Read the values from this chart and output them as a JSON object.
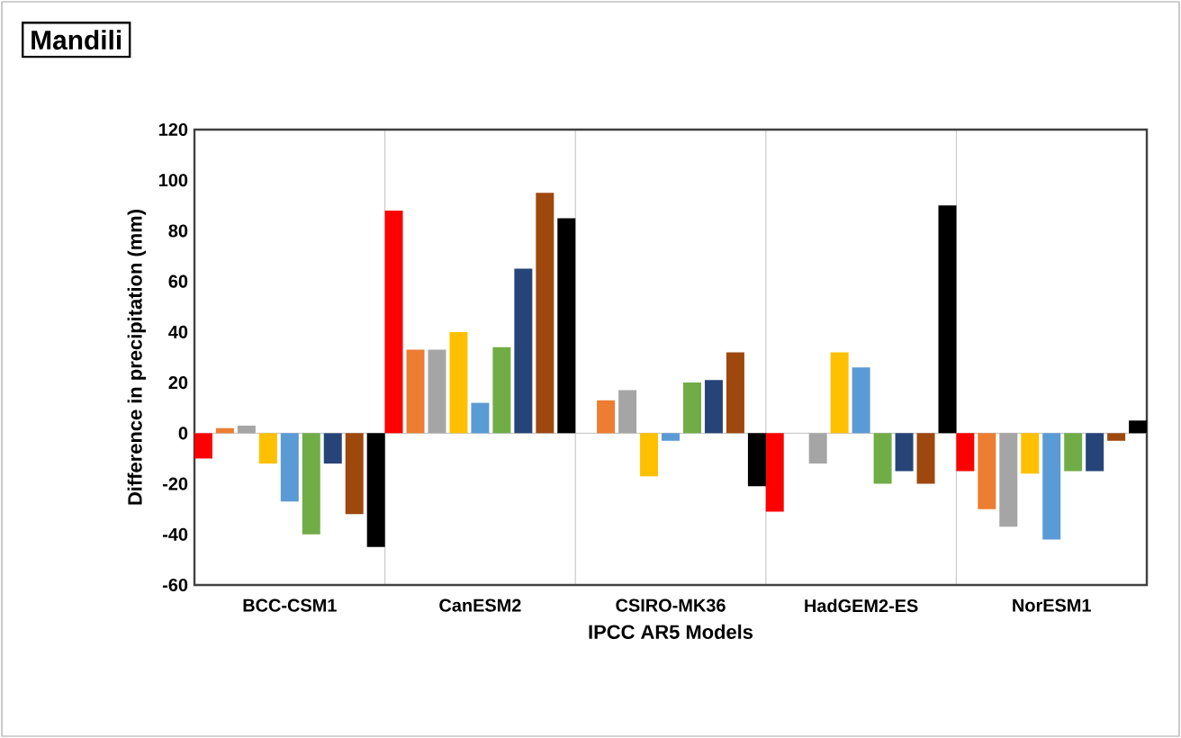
{
  "chart_data": {
    "type": "bar",
    "title": "Mandili",
    "xlabel": "IPCC AR5 Models",
    "ylabel": "Difference in precipitation (mm)",
    "categories": [
      "BCC-CSM1",
      "CanESM2",
      "CSIRO-MK36",
      "HadGEM2-ES",
      "NorESM1"
    ],
    "series": [
      {
        "color": "#ff0000",
        "values": [
          -10,
          88,
          0,
          -31,
          -15
        ]
      },
      {
        "color": "#ed7d31",
        "values": [
          2,
          33,
          13,
          0,
          -30
        ]
      },
      {
        "color": "#a5a5a5",
        "values": [
          3,
          33,
          17,
          -12,
          -37
        ]
      },
      {
        "color": "#ffc000",
        "values": [
          -12,
          40,
          -17,
          32,
          -16
        ]
      },
      {
        "color": "#5b9bd5",
        "values": [
          -27,
          12,
          -3,
          26,
          -42
        ]
      },
      {
        "color": "#70ad47",
        "values": [
          -40,
          34,
          20,
          -20,
          -15
        ]
      },
      {
        "color": "#264478",
        "values": [
          -12,
          65,
          21,
          -15,
          -15
        ]
      },
      {
        "color": "#9e480e",
        "values": [
          -32,
          95,
          32,
          -20,
          -3
        ]
      },
      {
        "color": "#000000",
        "values": [
          -45,
          85,
          -21,
          90,
          5
        ]
      }
    ],
    "ylim": [
      -60,
      120
    ],
    "yticks": [
      -60,
      -40,
      -20,
      0,
      20,
      40,
      60,
      80,
      100,
      120
    ],
    "grid": "x"
  }
}
